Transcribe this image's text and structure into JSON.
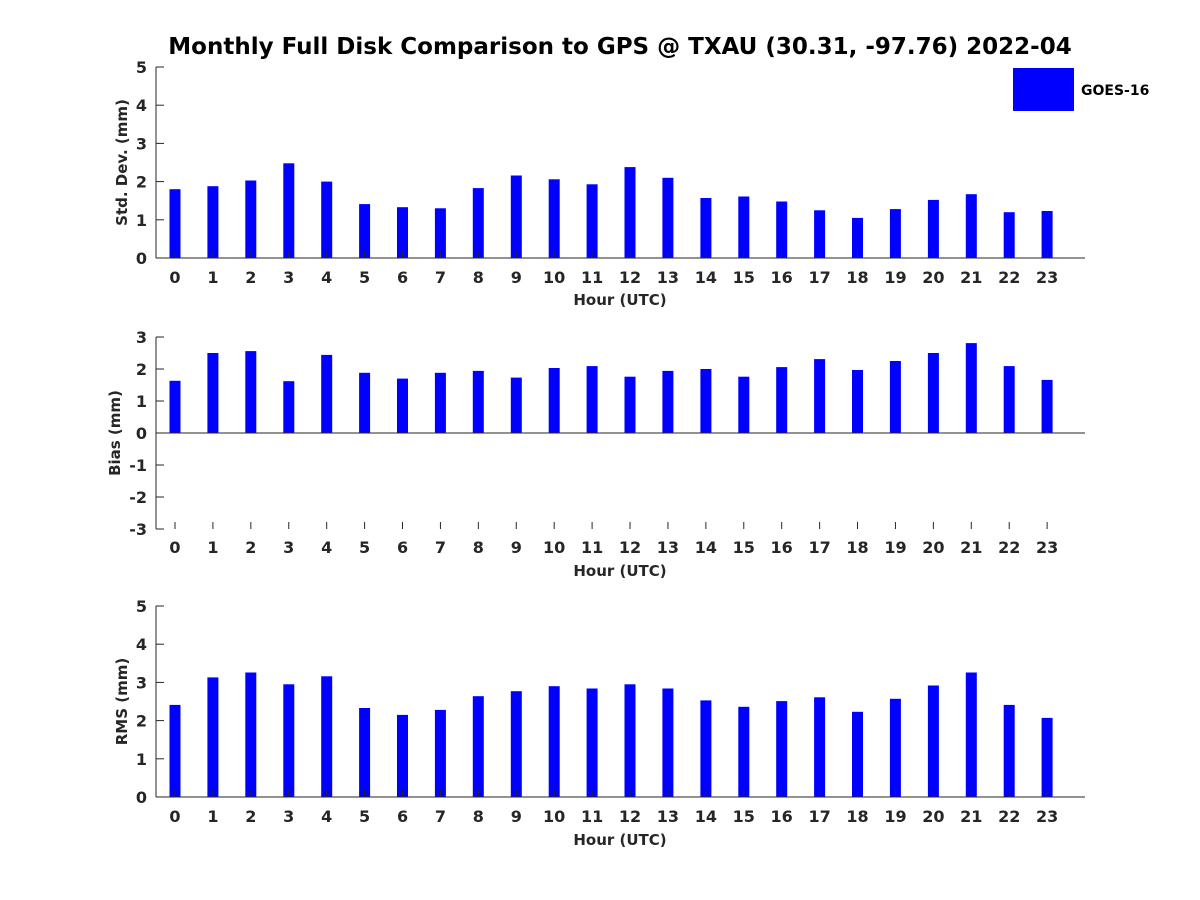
{
  "title": "Monthly Full Disk Comparison to GPS @ TXAU (30.31, -97.76) 2022-04",
  "legend": {
    "label": "GOES-16",
    "color": "#0000ff"
  },
  "bar_color": "#0000ff",
  "chart_data": [
    {
      "type": "bar",
      "xlabel": "Hour (UTC)",
      "ylabel": "Std. Dev. (mm)",
      "ylim": [
        0,
        5
      ],
      "yticks": [
        "0",
        "1",
        "2",
        "3",
        "4",
        "5"
      ],
      "categories": [
        "0",
        "1",
        "2",
        "3",
        "4",
        "5",
        "6",
        "7",
        "8",
        "9",
        "10",
        "11",
        "12",
        "13",
        "14",
        "15",
        "16",
        "17",
        "18",
        "19",
        "20",
        "21",
        "22",
        "23"
      ],
      "series": [
        {
          "name": "GOES-16",
          "values": [
            1.8,
            1.88,
            2.03,
            2.48,
            2.0,
            1.41,
            1.33,
            1.3,
            1.83,
            2.16,
            2.06,
            1.93,
            2.38,
            2.1,
            1.57,
            1.61,
            1.48,
            1.25,
            1.05,
            1.28,
            1.52,
            1.67,
            1.2,
            1.23
          ]
        }
      ]
    },
    {
      "type": "bar",
      "xlabel": "Hour (UTC)",
      "ylabel": "Bias (mm)",
      "ylim": [
        -3,
        3
      ],
      "yticks": [
        "-3",
        "-2",
        "-1",
        "0",
        "1",
        "2",
        "3"
      ],
      "categories": [
        "0",
        "1",
        "2",
        "3",
        "4",
        "5",
        "6",
        "7",
        "8",
        "9",
        "10",
        "11",
        "12",
        "13",
        "14",
        "15",
        "16",
        "17",
        "18",
        "19",
        "20",
        "21",
        "22",
        "23"
      ],
      "series": [
        {
          "name": "GOES-16",
          "values": [
            1.63,
            2.5,
            2.56,
            1.62,
            2.44,
            1.88,
            1.7,
            1.88,
            1.94,
            1.73,
            2.03,
            2.09,
            1.76,
            1.94,
            2.0,
            1.76,
            2.06,
            2.31,
            1.97,
            2.25,
            2.5,
            2.81,
            2.09,
            1.66
          ]
        }
      ]
    },
    {
      "type": "bar",
      "xlabel": "Hour (UTC)",
      "ylabel": "RMS (mm)",
      "ylim": [
        0,
        5
      ],
      "yticks": [
        "0",
        "1",
        "2",
        "3",
        "4",
        "5"
      ],
      "categories": [
        "0",
        "1",
        "2",
        "3",
        "4",
        "5",
        "6",
        "7",
        "8",
        "9",
        "10",
        "11",
        "12",
        "13",
        "14",
        "15",
        "16",
        "17",
        "18",
        "19",
        "20",
        "21",
        "22",
        "23"
      ],
      "series": [
        {
          "name": "GOES-16",
          "values": [
            2.41,
            3.13,
            3.26,
            2.95,
            3.16,
            2.33,
            2.15,
            2.28,
            2.64,
            2.77,
            2.9,
            2.84,
            2.95,
            2.84,
            2.53,
            2.36,
            2.51,
            2.61,
            2.23,
            2.57,
            2.92,
            3.26,
            2.41,
            2.07
          ]
        }
      ]
    }
  ]
}
